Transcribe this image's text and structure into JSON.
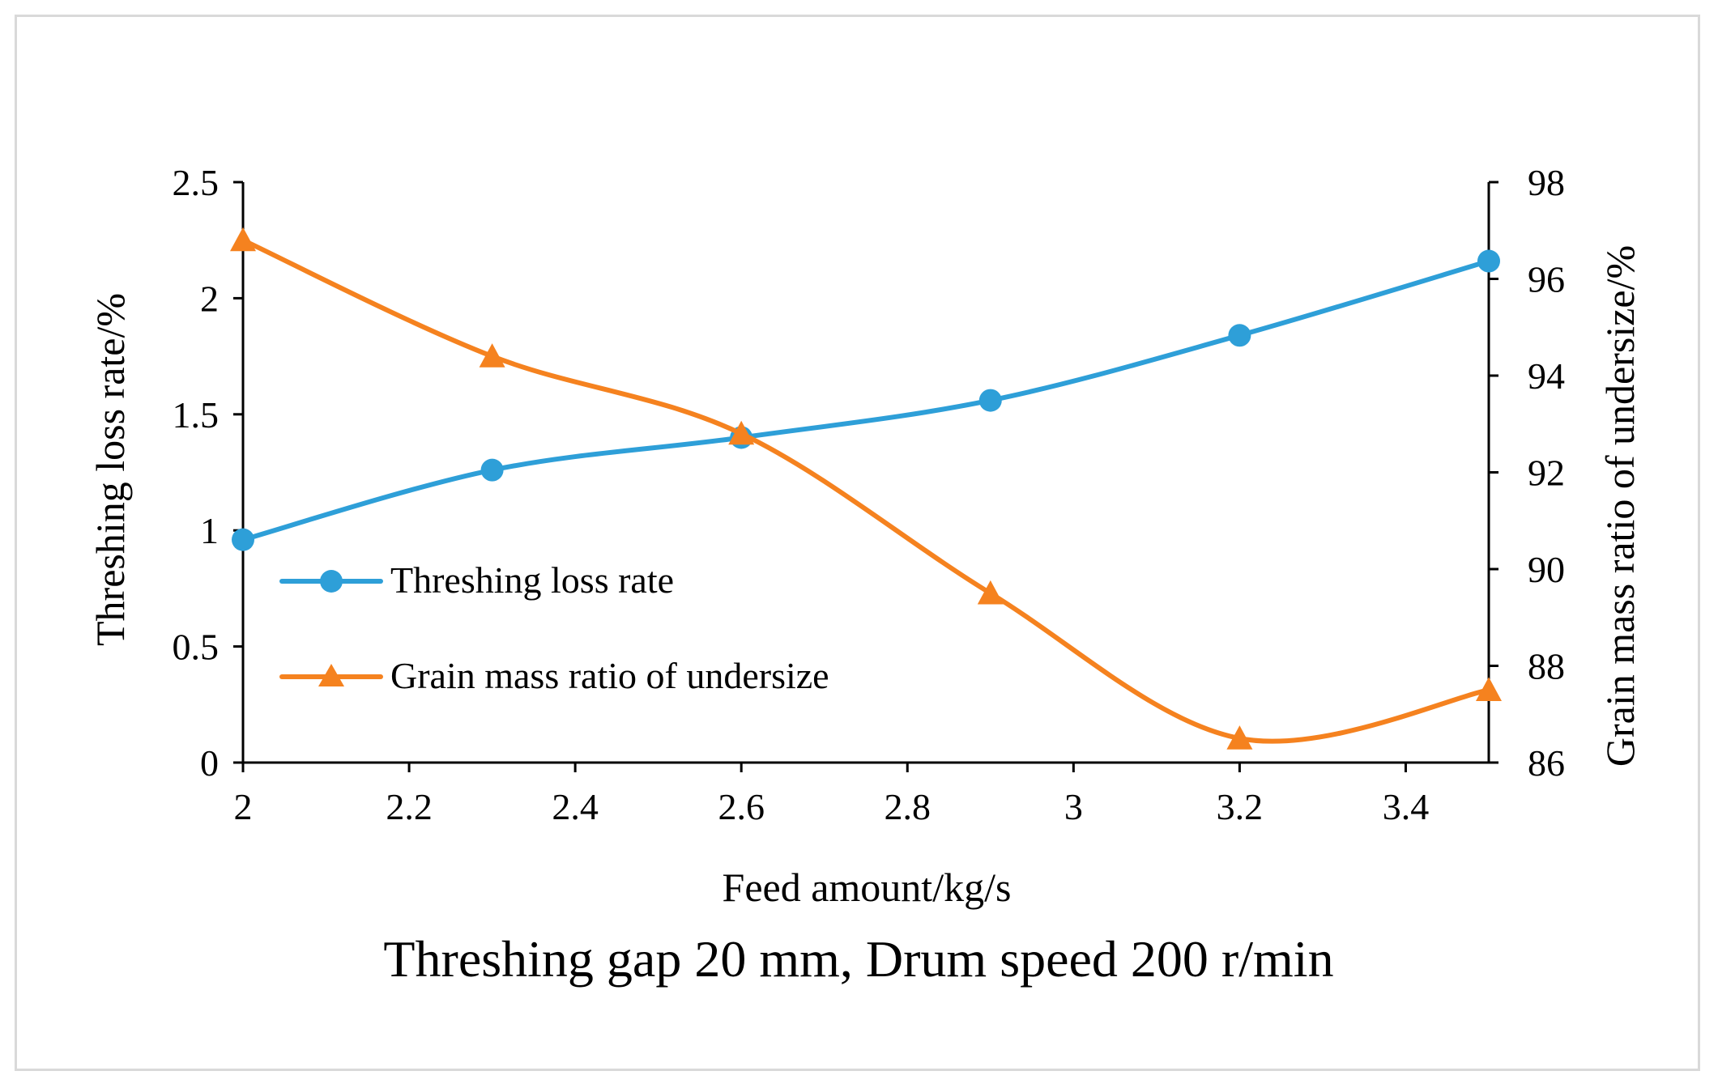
{
  "chart_data": {
    "type": "line",
    "title": "Threshing gap 20 mm, Drum speed 200 r/min",
    "xlabel": "Feed amount/kg/s",
    "ylabel_left": "Threshing loss rate/%",
    "ylabel_right": "Grain mass ratio of undersize/%",
    "xlim": [
      2,
      3.5
    ],
    "ylim_left": [
      0,
      2.5
    ],
    "ylim_right": [
      86,
      98
    ],
    "x_ticks": [
      "2",
      "2.2",
      "2.4",
      "2.6",
      "2.8",
      "3",
      "3.2",
      "3.4"
    ],
    "y_left_ticks": [
      "0",
      "0.5",
      "1",
      "1.5",
      "2",
      "2.5"
    ],
    "y_right_ticks": [
      "86",
      "88",
      "90",
      "92",
      "94",
      "96",
      "98"
    ],
    "x": [
      2.0,
      2.3,
      2.6,
      2.9,
      3.2,
      3.5
    ],
    "grid": false,
    "legend_position": "center-left",
    "series": [
      {
        "name": "Threshing loss rate",
        "axis": "left",
        "marker": "circle",
        "color": "#2E9FD8",
        "values": [
          0.96,
          1.26,
          1.4,
          1.56,
          1.84,
          2.16
        ]
      },
      {
        "name": "Grain mass ratio of undersize",
        "axis": "right",
        "marker": "triangle",
        "color": "#F5821F",
        "values": [
          96.8,
          94.4,
          92.8,
          89.5,
          86.5,
          87.5
        ]
      }
    ]
  }
}
